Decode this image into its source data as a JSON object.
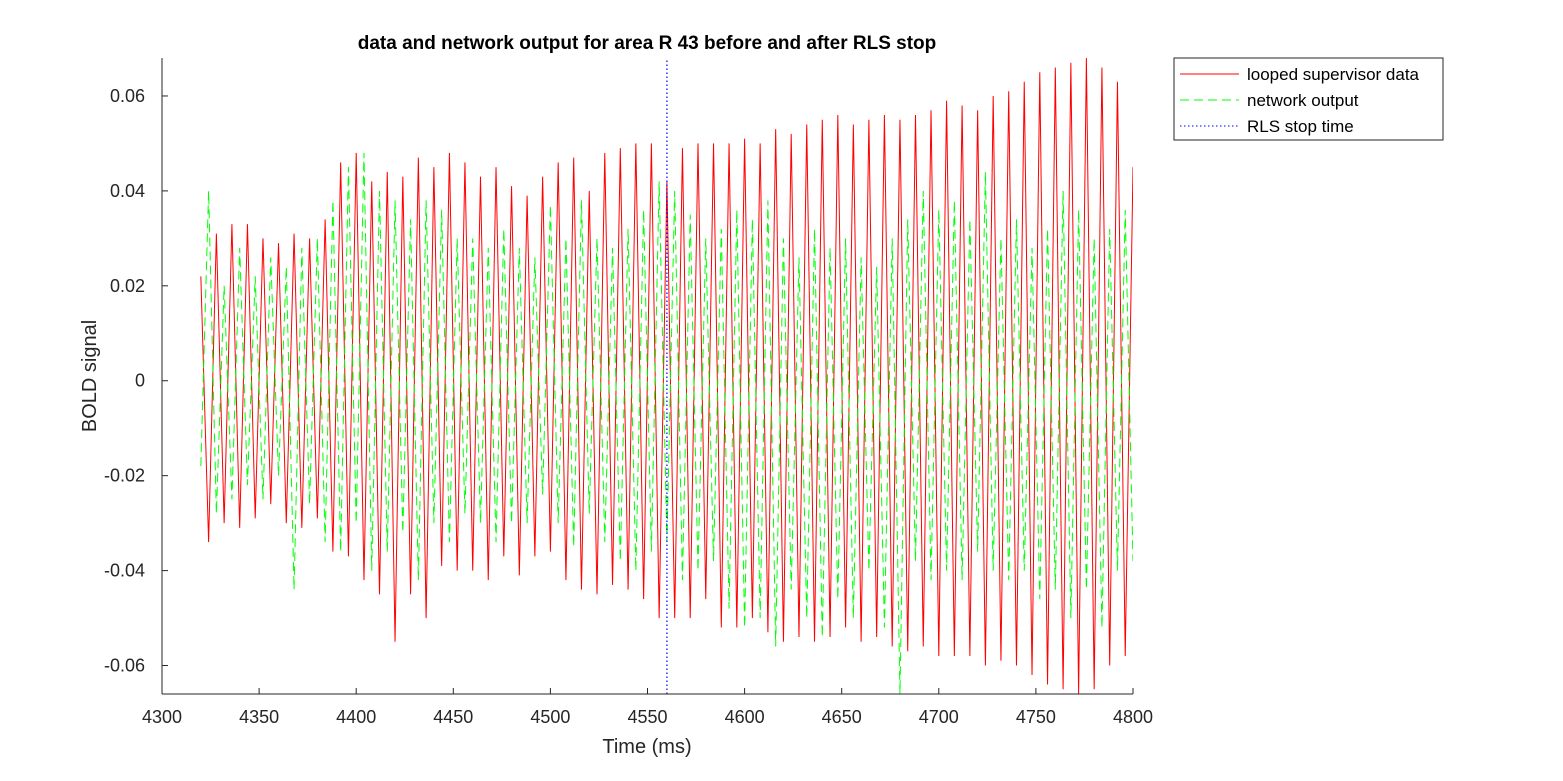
{
  "chart_data": {
    "type": "line",
    "title": "data and network output for area R 43 before and after RLS stop",
    "xlabel": "Time (ms)",
    "ylabel": "BOLD signal",
    "xlim": [
      4300,
      4800
    ],
    "ylim": [
      -0.066,
      0.068
    ],
    "x_ticks": [
      4300,
      4350,
      4400,
      4450,
      4500,
      4550,
      4600,
      4650,
      4700,
      4750,
      4800
    ],
    "x_tick_labels": [
      "4300",
      "4350",
      "4400",
      "4450",
      "4500",
      "4550",
      "4600",
      "4650",
      "4700",
      "4750",
      "4800"
    ],
    "y_ticks": [
      -0.06,
      -0.04,
      -0.02,
      0,
      0.02,
      0.04,
      0.06
    ],
    "y_tick_labels": [
      "-0.06",
      "-0.04",
      "-0.02",
      "0",
      "0.02",
      "0.04",
      "0.06"
    ],
    "grid": false,
    "legend_position": "outside-top-right",
    "rls_stop_time": 4560,
    "series": [
      {
        "name": "looped supervisor data",
        "color": "#ff0000",
        "style": "solid",
        "x": [
          4320,
          4324,
          4328,
          4332,
          4336,
          4340,
          4344,
          4348,
          4352,
          4356,
          4360,
          4364,
          4368,
          4372,
          4376,
          4380,
          4384,
          4388,
          4392,
          4396,
          4400,
          4404,
          4408,
          4412,
          4416,
          4420,
          4424,
          4428,
          4432,
          4436,
          4440,
          4444,
          4448,
          4452,
          4456,
          4460,
          4464,
          4468,
          4472,
          4476,
          4480,
          4484,
          4488,
          4492,
          4496,
          4500,
          4504,
          4508,
          4512,
          4516,
          4520,
          4524,
          4528,
          4532,
          4536,
          4540,
          4544,
          4548,
          4552,
          4556,
          4560,
          4564,
          4568,
          4572,
          4576,
          4580,
          4584,
          4588,
          4592,
          4596,
          4600,
          4604,
          4608,
          4612,
          4616,
          4620,
          4624,
          4628,
          4632,
          4636,
          4640,
          4644,
          4648,
          4652,
          4656,
          4660,
          4664,
          4668,
          4672,
          4676,
          4680,
          4684,
          4688,
          4692,
          4696,
          4700,
          4704,
          4708,
          4712,
          4716,
          4720,
          4724,
          4728,
          4732,
          4736,
          4740,
          4744,
          4748,
          4752,
          4756,
          4760,
          4764,
          4768,
          4772,
          4776,
          4780,
          4784,
          4788,
          4792,
          4796,
          4800
        ],
        "y": [
          0.022,
          -0.034,
          0.031,
          -0.03,
          0.033,
          -0.031,
          0.033,
          -0.029,
          0.03,
          -0.026,
          0.029,
          -0.03,
          0.031,
          -0.031,
          0.03,
          -0.029,
          0.034,
          -0.036,
          0.046,
          -0.037,
          0.048,
          -0.042,
          0.042,
          -0.045,
          0.044,
          -0.055,
          0.043,
          -0.045,
          0.047,
          -0.05,
          0.045,
          -0.039,
          0.048,
          -0.04,
          0.046,
          -0.04,
          0.043,
          -0.042,
          0.045,
          -0.037,
          0.041,
          -0.041,
          0.039,
          -0.037,
          0.043,
          -0.036,
          0.046,
          -0.042,
          0.047,
          -0.044,
          0.04,
          -0.045,
          0.048,
          -0.043,
          0.049,
          -0.044,
          0.05,
          -0.046,
          0.05,
          -0.05,
          0.042,
          -0.05,
          0.049,
          -0.05,
          0.05,
          -0.046,
          0.05,
          -0.052,
          0.05,
          -0.052,
          0.051,
          -0.05,
          0.05,
          -0.053,
          0.053,
          -0.055,
          0.052,
          -0.054,
          0.054,
          -0.055,
          0.055,
          -0.054,
          0.056,
          -0.052,
          0.054,
          -0.055,
          0.055,
          -0.054,
          0.056,
          -0.056,
          0.055,
          -0.057,
          0.056,
          -0.056,
          0.057,
          -0.058,
          0.059,
          -0.058,
          0.058,
          -0.058,
          0.057,
          -0.06,
          0.06,
          -0.059,
          0.061,
          -0.06,
          0.063,
          -0.062,
          0.065,
          -0.064,
          0.066,
          -0.065,
          0.067,
          -0.066,
          0.068,
          -0.065,
          0.066,
          -0.06,
          0.063,
          -0.058,
          0.045
        ]
      },
      {
        "name": "network output",
        "color": "#00ff00",
        "style": "dashed",
        "x": [
          4320,
          4324,
          4328,
          4332,
          4336,
          4340,
          4344,
          4348,
          4352,
          4356,
          4360,
          4364,
          4368,
          4372,
          4376,
          4380,
          4384,
          4388,
          4392,
          4396,
          4400,
          4404,
          4408,
          4412,
          4416,
          4420,
          4424,
          4428,
          4432,
          4436,
          4440,
          4444,
          4448,
          4452,
          4456,
          4460,
          4464,
          4468,
          4472,
          4476,
          4480,
          4484,
          4488,
          4492,
          4496,
          4500,
          4504,
          4508,
          4512,
          4516,
          4520,
          4524,
          4528,
          4532,
          4536,
          4540,
          4544,
          4548,
          4552,
          4556,
          4560,
          4564,
          4568,
          4572,
          4576,
          4580,
          4584,
          4588,
          4592,
          4596,
          4600,
          4604,
          4608,
          4612,
          4616,
          4620,
          4624,
          4628,
          4632,
          4636,
          4640,
          4644,
          4648,
          4652,
          4656,
          4660,
          4664,
          4668,
          4672,
          4676,
          4680,
          4684,
          4688,
          4692,
          4696,
          4700,
          4704,
          4708,
          4712,
          4716,
          4720,
          4724,
          4728,
          4732,
          4736,
          4740,
          4744,
          4748,
          4752,
          4756,
          4760,
          4764,
          4768,
          4772,
          4776,
          4780,
          4784,
          4788,
          4792,
          4796,
          4800
        ],
        "y": [
          -0.018,
          0.04,
          -0.028,
          0.02,
          -0.025,
          0.028,
          -0.022,
          0.022,
          -0.025,
          0.026,
          -0.02,
          0.024,
          -0.044,
          0.028,
          -0.026,
          0.03,
          -0.034,
          0.038,
          -0.036,
          0.045,
          -0.03,
          0.048,
          -0.04,
          0.04,
          -0.036,
          0.038,
          -0.032,
          0.034,
          -0.042,
          0.038,
          -0.03,
          0.036,
          -0.034,
          0.03,
          -0.028,
          0.03,
          -0.03,
          0.028,
          -0.034,
          0.032,
          -0.03,
          0.028,
          -0.03,
          0.026,
          -0.024,
          0.037,
          -0.03,
          0.03,
          -0.035,
          0.038,
          -0.028,
          0.03,
          -0.034,
          0.028,
          -0.038,
          0.032,
          -0.04,
          0.036,
          -0.036,
          0.042,
          -0.034,
          0.04,
          -0.042,
          0.035,
          -0.04,
          0.03,
          -0.038,
          0.032,
          -0.048,
          0.036,
          -0.052,
          0.034,
          -0.05,
          0.038,
          -0.056,
          0.03,
          -0.044,
          0.026,
          -0.05,
          0.032,
          -0.054,
          0.028,
          -0.046,
          0.03,
          -0.05,
          0.026,
          -0.04,
          0.024,
          -0.052,
          0.03,
          -0.066,
          0.034,
          -0.038,
          0.04,
          -0.042,
          0.036,
          -0.04,
          0.038,
          -0.042,
          0.034,
          -0.036,
          0.044,
          -0.04,
          0.03,
          -0.042,
          0.034,
          -0.04,
          0.028,
          -0.046,
          0.032,
          -0.044,
          0.04,
          -0.05,
          0.036,
          -0.044,
          0.03,
          -0.052,
          0.032,
          -0.04,
          0.036,
          -0.038
        ]
      },
      {
        "name": "RLS stop time",
        "color": "#0000ff",
        "style": "dotted",
        "x": [
          4560,
          4560
        ],
        "y": [
          -0.066,
          0.068
        ]
      }
    ]
  }
}
